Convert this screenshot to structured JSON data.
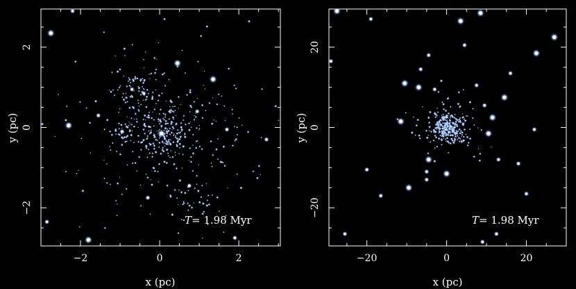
{
  "colors": {
    "background": "#000000",
    "frame": "#ffffff",
    "star": "#cfe6ff",
    "glow": "#5aa0ff"
  },
  "chart_data": [
    {
      "type": "scatter",
      "xlabel": "x (pc)",
      "ylabel": "y (pc)",
      "xlim": [
        -3,
        3.05
      ],
      "ylim": [
        -2.95,
        2.95
      ],
      "xticks": [
        -2,
        0,
        2
      ],
      "yticks": [
        -2,
        0,
        2
      ],
      "xtick_labels": [
        "−2",
        "0",
        "2"
      ],
      "ytick_labels": [
        "−2",
        "0",
        "2"
      ],
      "grid": false,
      "annotation": {
        "symbol": "T",
        "text": "= 1.98 Myr"
      },
      "bright_stars": [
        {
          "x": -2.75,
          "y": 2.35,
          "size": 3
        },
        {
          "x": -1.8,
          "y": -2.8,
          "size": 3
        },
        {
          "x": -2.3,
          "y": 0.05,
          "size": 3
        },
        {
          "x": 0.45,
          "y": 1.6,
          "size": 3
        },
        {
          "x": 1.35,
          "y": 1.2,
          "size": 3
        },
        {
          "x": -0.7,
          "y": 0.95,
          "size": 2
        },
        {
          "x": -0.4,
          "y": 0.85,
          "size": 2
        },
        {
          "x": 0.05,
          "y": -0.15,
          "size": 3
        },
        {
          "x": -0.95,
          "y": -0.1,
          "size": 2
        },
        {
          "x": -0.3,
          "y": -1.75,
          "size": 2
        },
        {
          "x": 0.75,
          "y": -1.45,
          "size": 2
        },
        {
          "x": 1.7,
          "y": -0.05,
          "size": 2
        },
        {
          "x": -1.55,
          "y": 0.3,
          "size": 2
        },
        {
          "x": 0.95,
          "y": 0.4,
          "size": 2
        },
        {
          "x": 2.7,
          "y": -0.3,
          "size": 2
        },
        {
          "x": -2.85,
          "y": -2.35,
          "size": 2
        },
        {
          "x": 1.9,
          "y": -2.75,
          "size": 2
        },
        {
          "x": -2.2,
          "y": 2.9,
          "size": 2
        }
      ],
      "clusters": [
        {
          "cx": 0.1,
          "cy": -0.2,
          "sx": 0.32,
          "sy": 0.32,
          "n": 160
        },
        {
          "cx": -0.55,
          "cy": 0.9,
          "sx": 0.18,
          "sy": 0.2,
          "n": 45
        },
        {
          "cx": -0.8,
          "cy": -0.1,
          "sx": 0.2,
          "sy": 0.15,
          "n": 30
        },
        {
          "cx": 0.9,
          "cy": -1.8,
          "sx": 0.3,
          "sy": 0.3,
          "n": 25
        },
        {
          "cx": 0.0,
          "cy": 0.0,
          "sx": 1.2,
          "sy": 1.1,
          "n": 320
        }
      ]
    },
    {
      "type": "scatter",
      "xlabel": "x (pc)",
      "ylabel": "y (pc)",
      "xlim": [
        -29.5,
        30
      ],
      "ylim": [
        -29.5,
        29.5
      ],
      "xticks": [
        -20,
        0,
        20
      ],
      "yticks": [
        -20,
        0,
        20
      ],
      "xtick_labels": [
        "−20",
        "0",
        "20"
      ],
      "ytick_labels": [
        "−20",
        "0",
        "20"
      ],
      "grid": false,
      "annotation": {
        "symbol": "T",
        "text": "= 1.98 Myr"
      },
      "bright_stars": [
        {
          "x": -27.5,
          "y": 29,
          "size": 3
        },
        {
          "x": -19,
          "y": 27,
          "size": 2
        },
        {
          "x": 3.5,
          "y": 26.5,
          "size": 3
        },
        {
          "x": 8.5,
          "y": 28.5,
          "size": 3
        },
        {
          "x": 27,
          "y": 22.5,
          "size": 3
        },
        {
          "x": 22.5,
          "y": 18.5,
          "size": 3
        },
        {
          "x": 4.5,
          "y": 20.5,
          "size": 2
        },
        {
          "x": -4.5,
          "y": 18,
          "size": 2
        },
        {
          "x": -6.5,
          "y": 14.5,
          "size": 2
        },
        {
          "x": 16,
          "y": 13.5,
          "size": 2
        },
        {
          "x": -10.5,
          "y": 11,
          "size": 3
        },
        {
          "x": -7,
          "y": 10,
          "size": 3
        },
        {
          "x": -3,
          "y": 9.5,
          "size": 2
        },
        {
          "x": 7.5,
          "y": 10.5,
          "size": 2
        },
        {
          "x": 14.5,
          "y": 7.5,
          "size": 3
        },
        {
          "x": 9.5,
          "y": 5.5,
          "size": 2
        },
        {
          "x": 11.5,
          "y": 2.5,
          "size": 3
        },
        {
          "x": -11.5,
          "y": 1.5,
          "size": 3
        },
        {
          "x": 10.5,
          "y": -1.5,
          "size": 3
        },
        {
          "x": 22,
          "y": -0.5,
          "size": 2
        },
        {
          "x": -4.5,
          "y": -8,
          "size": 3
        },
        {
          "x": -5,
          "y": -11,
          "size": 2
        },
        {
          "x": -20,
          "y": -10.5,
          "size": 2
        },
        {
          "x": 0,
          "y": -11.5,
          "size": 3
        },
        {
          "x": -5,
          "y": -13,
          "size": 2
        },
        {
          "x": 13,
          "y": -8,
          "size": 2
        },
        {
          "x": 18,
          "y": -9,
          "size": 2
        },
        {
          "x": -9.5,
          "y": -15,
          "size": 3
        },
        {
          "x": -16.5,
          "y": -17,
          "size": 2
        },
        {
          "x": 20,
          "y": -16.5,
          "size": 2
        },
        {
          "x": -25.5,
          "y": -26.5,
          "size": 2
        },
        {
          "x": 9,
          "y": -28.5,
          "size": 2
        },
        {
          "x": -29,
          "y": 16.5,
          "size": 2
        },
        {
          "x": 12.5,
          "y": -26.5,
          "size": 2
        }
      ],
      "clusters": [
        {
          "cx": 0.3,
          "cy": 0.0,
          "sx": 1.8,
          "sy": 1.7,
          "n": 240
        },
        {
          "cx": 0.5,
          "cy": 0.3,
          "sx": 4.0,
          "sy": 3.6,
          "n": 120
        }
      ]
    }
  ]
}
